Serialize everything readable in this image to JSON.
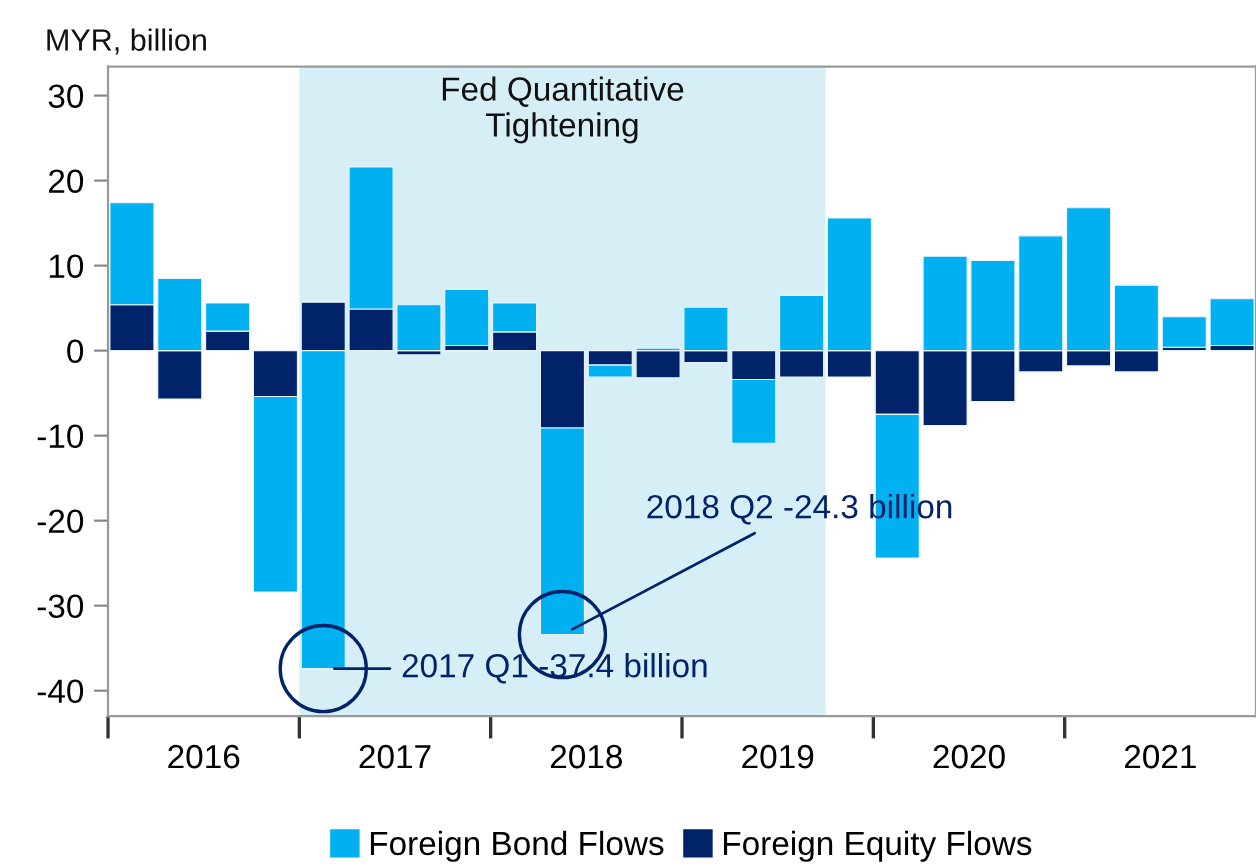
{
  "chart_data": {
    "type": "bar",
    "stacked": true,
    "ylabel": "MYR, billion",
    "x": [
      2016.125,
      2016.375,
      2016.625,
      2016.875,
      2017.125,
      2017.375,
      2017.625,
      2017.875,
      2018.125,
      2018.375,
      2018.625,
      2018.875,
      2019.125,
      2019.375,
      2019.625,
      2019.875,
      2020.125,
      2020.375,
      2020.625,
      2020.875,
      2021.125,
      2021.375,
      2021.625,
      2021.875
    ],
    "series": [
      {
        "name": "Foreign Equity Flows",
        "color": "#002369",
        "values": [
          5.4,
          -5.7,
          2.3,
          -5.4,
          5.7,
          4.9,
          -0.5,
          0.6,
          2.2,
          -9.1,
          -1.7,
          -3.2,
          -1.4,
          -3.4,
          -3.1,
          -3.1,
          -7.5,
          -8.8,
          -6.0,
          -2.5,
          -1.8,
          -2.5,
          0.4,
          0.6
        ]
      },
      {
        "name": "Foreign Bond Flows",
        "color": "#00b0f0",
        "values": [
          12.0,
          8.5,
          3.3,
          -23.0,
          -37.4,
          16.7,
          5.4,
          6.6,
          3.4,
          -24.3,
          -1.4,
          0.3,
          5.1,
          -7.5,
          6.5,
          15.6,
          -16.9,
          11.1,
          10.6,
          13.5,
          16.8,
          7.7,
          3.6,
          5.5
        ]
      }
    ],
    "xlim": [
      2016,
      2022
    ],
    "xticks": [
      {
        "value": 2016,
        "label": null
      },
      {
        "value": 2017,
        "label": null
      },
      {
        "value": 2018,
        "label": null
      },
      {
        "value": 2019,
        "label": null
      },
      {
        "value": 2020,
        "label": null
      },
      {
        "value": 2021,
        "label": null
      },
      {
        "value": 2016.5,
        "label": "2016"
      },
      {
        "value": 2017.5,
        "label": "2017"
      },
      {
        "value": 2018.5,
        "label": "2018"
      },
      {
        "value": 2019.5,
        "label": "2019"
      },
      {
        "value": 2020.5,
        "label": "2020"
      },
      {
        "value": 2021.5,
        "label": "2021"
      }
    ],
    "ylim": [
      -43,
      33.4
    ],
    "yticks": [
      -40,
      -30,
      -20,
      -10,
      0,
      10,
      20,
      30
    ],
    "bands": [
      {
        "axis": "x",
        "from": 2017,
        "to": 2019.75,
        "label": "Fed Quantitative\nTightening",
        "color": "#d6eef5"
      }
    ],
    "annotations": [
      {
        "text": "2017 Q1 -37.4 billion",
        "x": 2017.125,
        "y": -37.4
      },
      {
        "text": "2018 Q2 -24.3 billion",
        "x": 2018.375,
        "y": -33.4
      }
    ],
    "legend": "bottom"
  }
}
